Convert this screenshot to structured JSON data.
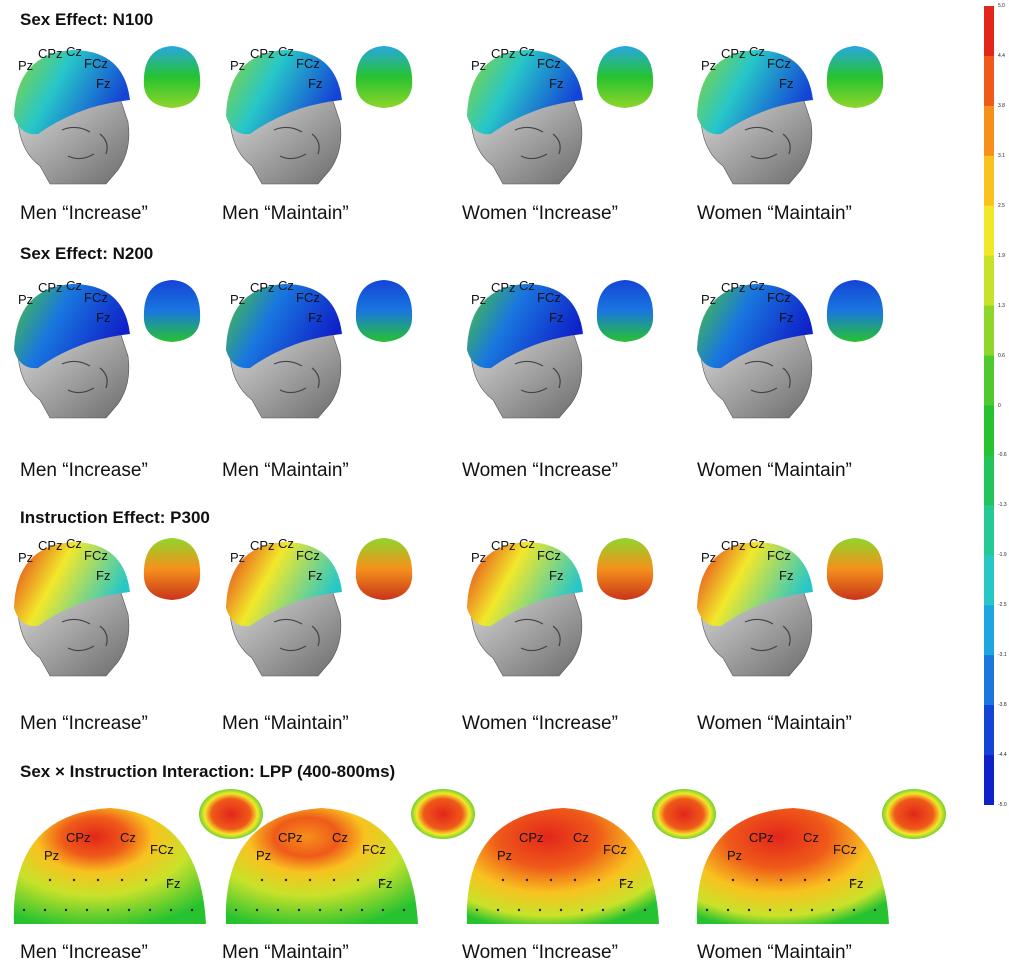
{
  "sections": [
    {
      "title": "Sex Effect: N100",
      "panels": [
        {
          "label": "Men “Increase”",
          "electrodes": [
            "Pz",
            "CPz",
            "Cz",
            "FCz",
            "Fz"
          ]
        },
        {
          "label": "Men “Maintain”",
          "electrodes": [
            "Pz",
            "CPz",
            "Cz",
            "FCz",
            "Fz"
          ]
        },
        {
          "label": "Women “Increase”",
          "electrodes": [
            "Pz",
            "CPz",
            "Cz",
            "FCz",
            "Fz"
          ]
        },
        {
          "label": "Women “Maintain”",
          "electrodes": [
            "Pz",
            "CPz",
            "Cz",
            "FCz",
            "Fz"
          ]
        }
      ]
    },
    {
      "title": "Sex Effect: N200",
      "panels": [
        {
          "label": "Men “Increase”",
          "electrodes": [
            "Pz",
            "CPz",
            "Cz",
            "FCz",
            "Fz"
          ]
        },
        {
          "label": "Men “Maintain”",
          "electrodes": [
            "Pz",
            "CPz",
            "Cz",
            "FCz",
            "Fz"
          ]
        },
        {
          "label": "Women “Increase”",
          "electrodes": [
            "Pz",
            "CPz",
            "Cz",
            "FCz",
            "Fz"
          ]
        },
        {
          "label": "Women “Maintain”",
          "electrodes": [
            "Pz",
            "CPz",
            "Cz",
            "FCz",
            "Fz"
          ]
        }
      ]
    },
    {
      "title": "Instruction Effect: P300",
      "panels": [
        {
          "label": "Men “Increase”",
          "electrodes": [
            "Pz",
            "CPz",
            "Cz",
            "FCz",
            "Fz"
          ]
        },
        {
          "label": "Men “Maintain”",
          "electrodes": [
            "Pz",
            "CPz",
            "Cz",
            "FCz",
            "Fz"
          ]
        },
        {
          "label": "Women “Increase”",
          "electrodes": [
            "Pz",
            "CPz",
            "Cz",
            "FCz",
            "Fz"
          ]
        },
        {
          "label": "Women “Maintain”",
          "electrodes": [
            "Pz",
            "CPz",
            "Cz",
            "FCz",
            "Fz"
          ]
        }
      ]
    },
    {
      "title": "Sex × Instruction Interaction: LPP (400-800ms)",
      "panels": [
        {
          "label": "Men “Increase”",
          "electrodes": [
            "Pz",
            "CPz",
            "Cz",
            "FCz",
            "Fz"
          ]
        },
        {
          "label": "Men “Maintain”",
          "electrodes": [
            "Pz",
            "CPz",
            "Cz",
            "FCz",
            "Fz"
          ]
        },
        {
          "label": "Women “Increase”",
          "electrodes": [
            "Pz",
            "CPz",
            "Cz",
            "FCz",
            "Fz"
          ]
        },
        {
          "label": "Women “Maintain”",
          "electrodes": [
            "Pz",
            "CPz",
            "Cz",
            "FCz",
            "Fz"
          ]
        }
      ]
    }
  ],
  "colorbar": {
    "colors": [
      "#e3261b",
      "#ef5a19",
      "#f6901b",
      "#f8c21f",
      "#f2e82a",
      "#c8e22a",
      "#8fd62b",
      "#4fc92d",
      "#27c230",
      "#24c35b",
      "#25c996",
      "#27c7c8",
      "#1fa6e0",
      "#1977df",
      "#1444d6",
      "#0f22c9"
    ],
    "tick_labels": [
      "5.0",
      "4.4",
      "3.8",
      "3.1",
      "2.5",
      "1.9",
      "1.3",
      "0.6",
      "0",
      "-0.6",
      "-1.3",
      "-1.9",
      "-2.5",
      "-3.1",
      "-3.8",
      "-4.4",
      "-5.0"
    ]
  }
}
